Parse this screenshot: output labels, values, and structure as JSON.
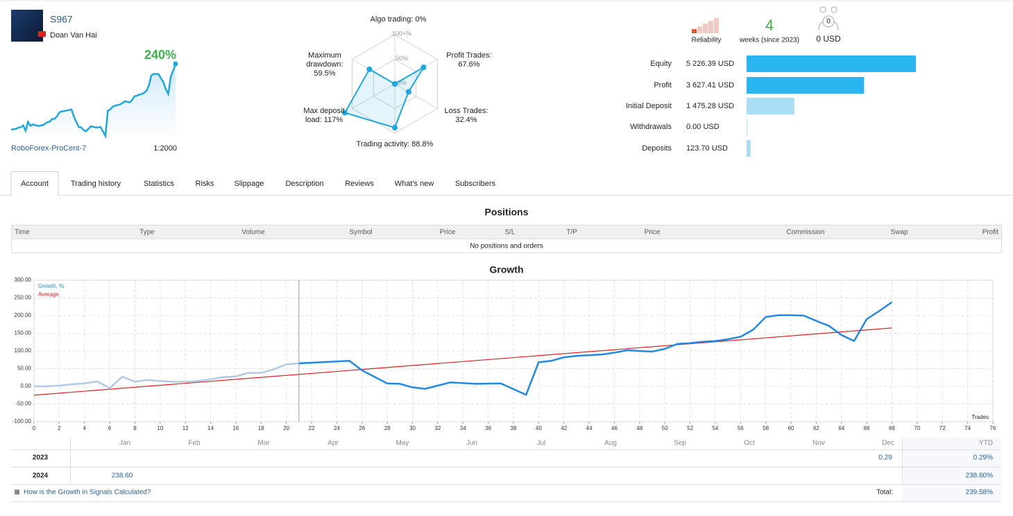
{
  "header": {
    "signal_name": "S967",
    "author": "Doan Van Hai",
    "growth": "240%",
    "broker": "RoboForex-ProCent-7",
    "leverage": "1:2000"
  },
  "radar": {
    "color": "#1ba8e0",
    "ring_labels": [
      {
        "value": 100,
        "label": "100+%"
      },
      {
        "value": 50,
        "label": "50%"
      },
      {
        "value": 0,
        "label": "0%"
      }
    ],
    "axes": [
      {
        "name": "Algo trading:",
        "value": 0,
        "value_label": "0%"
      },
      {
        "name": "Profit Trades:",
        "value": 67.6,
        "value_label": "67.6%"
      },
      {
        "name": "Loss Trades:",
        "value": 32.4,
        "value_label": "32.4%"
      },
      {
        "name": "Trading activity:",
        "value": 88.8,
        "value_label": "88.8%"
      },
      {
        "name": "Max deposit load:",
        "value": 117,
        "value_label": "117%"
      },
      {
        "name": "Maximum drawdown:",
        "value": 59.5,
        "value_label": "59.5%"
      }
    ]
  },
  "summary": {
    "reliability_label": "Reliability",
    "weeks": 4,
    "weeks_label": "weeks (since 2023)",
    "subscribers": 0,
    "subscriber_funds": "0 USD",
    "bars": [
      {
        "label": "Equity",
        "value": 5226.39,
        "value_label": "5 226.39 USD",
        "color": "#29b6f0"
      },
      {
        "label": "Profit",
        "value": 3627.41,
        "value_label": "3 627.41 USD",
        "color": "#29b6f0"
      },
      {
        "label": "Initial Deposit",
        "value": 1475.28,
        "value_label": "1 475.28 USD",
        "color": "#a9dff6"
      },
      {
        "label": "Withdrawals",
        "value": 0,
        "value_label": "0.00 USD",
        "color": "#a9dff6"
      },
      {
        "label": "Deposits",
        "value": 123.7,
        "value_label": "123.70 USD",
        "color": "#a9dff6"
      }
    ]
  },
  "tabs": {
    "items": [
      "Account",
      "Trading history",
      "Statistics",
      "Risks",
      "Slippage",
      "Description",
      "Reviews",
      "What's new",
      "Subscribers"
    ],
    "active": 0
  },
  "positions": {
    "title": "Positions",
    "columns": [
      "Time",
      "Type",
      "Volume",
      "Symbol",
      "Price",
      "S/L",
      "T/P",
      "Price",
      "Commission",
      "Swap",
      "Profit"
    ],
    "empty": "No positions and orders"
  },
  "chart_data": {
    "type": "line",
    "title": "Growth",
    "x_label": "Trades",
    "grid": true,
    "history_until": 21,
    "xlim": [
      0,
      76
    ],
    "xticks": [
      0,
      2,
      4,
      6,
      8,
      10,
      12,
      14,
      16,
      18,
      20,
      22,
      24,
      26,
      28,
      30,
      32,
      34,
      36,
      38,
      40,
      42,
      44,
      46,
      48,
      50,
      52,
      54,
      56,
      58,
      60,
      62,
      64,
      66,
      68,
      70,
      72,
      74,
      76
    ],
    "ylim": [
      -100,
      300
    ],
    "yticks": [
      {
        "value": -100,
        "label": "-100.00"
      },
      {
        "value": -50,
        "label": "-50.00"
      },
      {
        "value": 0,
        "label": "0.00"
      },
      {
        "value": 50,
        "label": "50.00"
      },
      {
        "value": 100,
        "label": "100.00"
      },
      {
        "value": 150,
        "label": "150.00"
      },
      {
        "value": 200,
        "label": "200.00"
      },
      {
        "value": 250,
        "label": "250.00"
      },
      {
        "value": 300,
        "label": "300.00"
      }
    ],
    "series": [
      {
        "name": "Growth, %",
        "color": "#1e88e5",
        "history_color": "#b0cbe6",
        "x": [
          0,
          1,
          2,
          3,
          4,
          5,
          6,
          7,
          8,
          9,
          10,
          11,
          12,
          13,
          14,
          15,
          16,
          17,
          18,
          19,
          20,
          21,
          25,
          26,
          28,
          29,
          30,
          31,
          33,
          35,
          37,
          39,
          40,
          41,
          42,
          43,
          44,
          45,
          46,
          47,
          48,
          49,
          50,
          51,
          52,
          53,
          54,
          55,
          56,
          57,
          58,
          59,
          60,
          61,
          62,
          63,
          64,
          65,
          66,
          67,
          68
        ],
        "values": [
          0,
          0,
          2,
          6,
          8,
          14,
          -5,
          27,
          13,
          18,
          15,
          13,
          13,
          15,
          20,
          26,
          28,
          38,
          38,
          48,
          62,
          65,
          72,
          45,
          8,
          7,
          -3,
          -7,
          11,
          7,
          8,
          -24,
          68,
          72,
          82,
          86,
          88,
          90,
          95,
          102,
          100,
          98,
          106,
          120,
          122,
          126,
          128,
          133,
          140,
          160,
          196,
          201,
          201,
          200,
          185,
          171,
          145,
          128,
          190,
          213,
          238
        ]
      },
      {
        "name": "Average",
        "color": "#e02020",
        "x": [
          0,
          68
        ],
        "values": [
          -25,
          165
        ]
      }
    ]
  },
  "growth_table": {
    "months": [
      "Jan",
      "Feb",
      "Mar",
      "Apr",
      "May",
      "Jun",
      "Jul",
      "Aug",
      "Sep",
      "Oct",
      "Nov",
      "Dec"
    ],
    "ytd_header": "YTD",
    "rows": [
      {
        "year": "2023",
        "months": [
          null,
          null,
          null,
          null,
          null,
          null,
          null,
          null,
          null,
          null,
          null,
          "0.29"
        ],
        "ytd": "0.29%"
      },
      {
        "year": "2024",
        "months": [
          "238.60",
          null,
          null,
          null,
          null,
          null,
          null,
          null,
          null,
          null,
          null,
          null
        ],
        "ytd": "238.60%"
      }
    ],
    "help_link": "How is the Growth in Signals Calculated?",
    "total_label": "Total:",
    "total": "239.58%"
  }
}
